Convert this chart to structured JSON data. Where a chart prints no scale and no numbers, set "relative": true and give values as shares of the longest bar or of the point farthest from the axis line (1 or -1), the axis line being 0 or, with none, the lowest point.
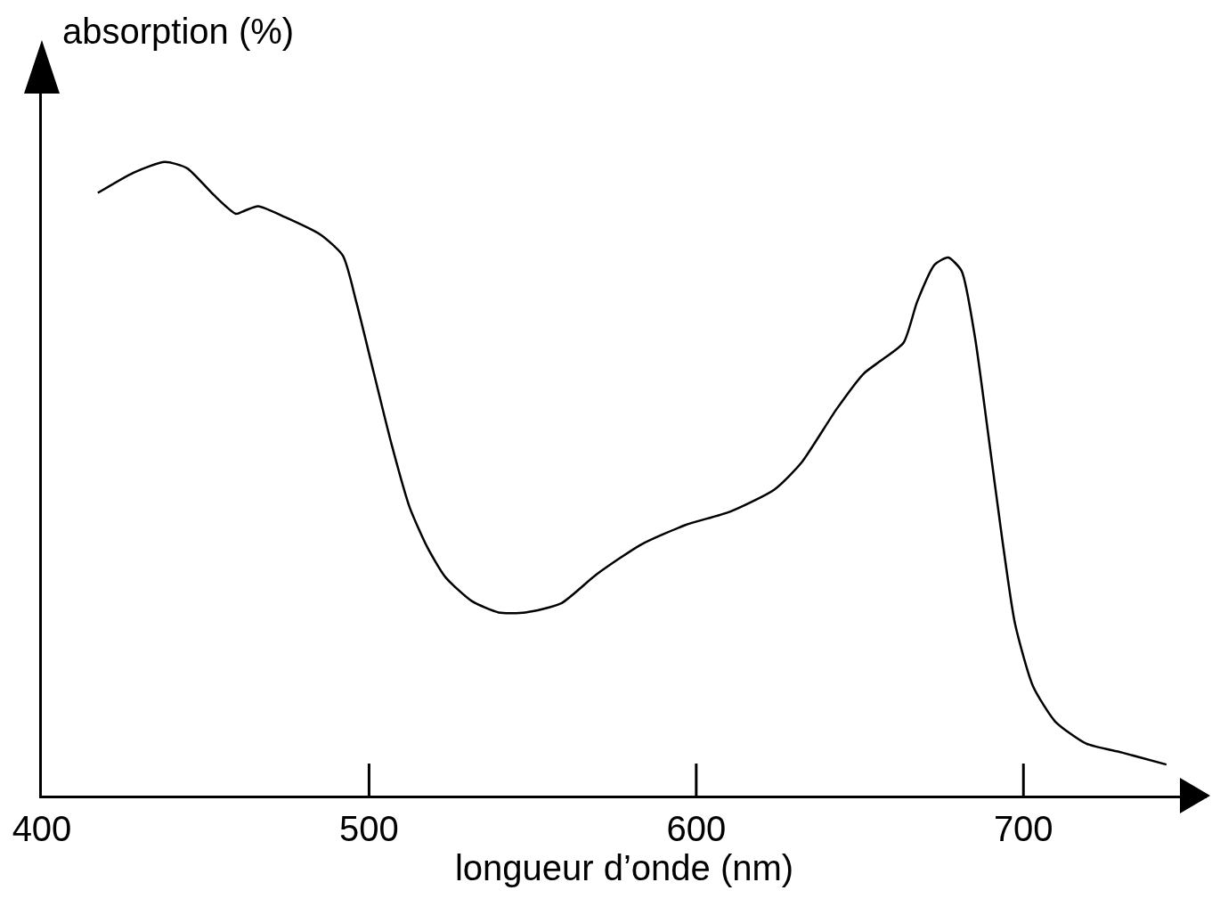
{
  "chart_data": {
    "type": "line",
    "relative": true,
    "xlabel": "longueur d’onde (nm)",
    "ylabel": "absorption (%)",
    "xlim": [
      400,
      756
    ],
    "xticks": [
      400,
      500,
      600,
      700
    ],
    "grid": false,
    "legend": false,
    "marker": "none",
    "line_style": "solid",
    "series": [
      {
        "color": "#000000",
        "x": [
          417.1,
          428.0,
          437.6,
          444.4,
          452.5,
          459.3,
          462.0,
          466.1,
          474.3,
          485.2,
          492.0,
          496.1,
          501.5,
          506.9,
          512.4,
          517.8,
          523.3,
          531.4,
          539.6,
          547.8,
          558.6,
          569.5,
          583.1,
          596.7,
          610.3,
          623.9,
          632.1,
          642.9,
          651.2,
          656.6,
          663.4,
          667.5,
          672.9,
          677.0,
          681.1,
          685.2,
          689.3,
          693.3,
          697.4,
          702.9,
          709.7,
          719.2,
          730.1,
          743.7
        ],
        "values": [
          0.951,
          0.983,
          1.0,
          0.99,
          0.948,
          0.918,
          0.923,
          0.93,
          0.913,
          0.885,
          0.852,
          0.779,
          0.666,
          0.554,
          0.455,
          0.392,
          0.345,
          0.307,
          0.289,
          0.289,
          0.303,
          0.349,
          0.396,
          0.427,
          0.448,
          0.483,
          0.525,
          0.61,
          0.666,
          0.687,
          0.715,
          0.779,
          0.838,
          0.849,
          0.828,
          0.723,
          0.568,
          0.413,
          0.272,
          0.173,
          0.117,
          0.082,
          0.068,
          0.049
        ]
      }
    ]
  }
}
